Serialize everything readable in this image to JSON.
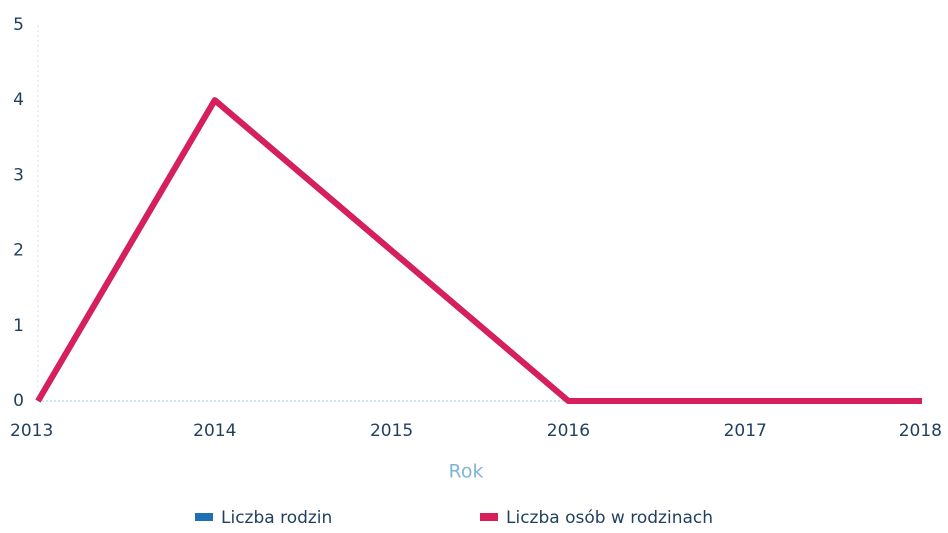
{
  "chart_data": {
    "type": "line",
    "x_label": "Rok",
    "x": [
      2013,
      2014,
      2015,
      2016,
      2017,
      2018
    ],
    "series": [
      {
        "name": "Liczba rodzin",
        "color": "#1f6fb5",
        "values": [
          0,
          4,
          2,
          0,
          0,
          0
        ]
      },
      {
        "name": "Liczba osób w rodzinach",
        "color": "#d81e5b",
        "values": [
          0,
          4,
          2,
          0,
          0,
          0
        ]
      }
    ],
    "xlim": [
      2013,
      2018
    ],
    "xticks": [
      2013,
      2014,
      2015,
      2016,
      2017,
      2018
    ],
    "ylim": [
      0,
      5
    ],
    "yticks": [
      0,
      1,
      2,
      3,
      4,
      5
    ]
  }
}
